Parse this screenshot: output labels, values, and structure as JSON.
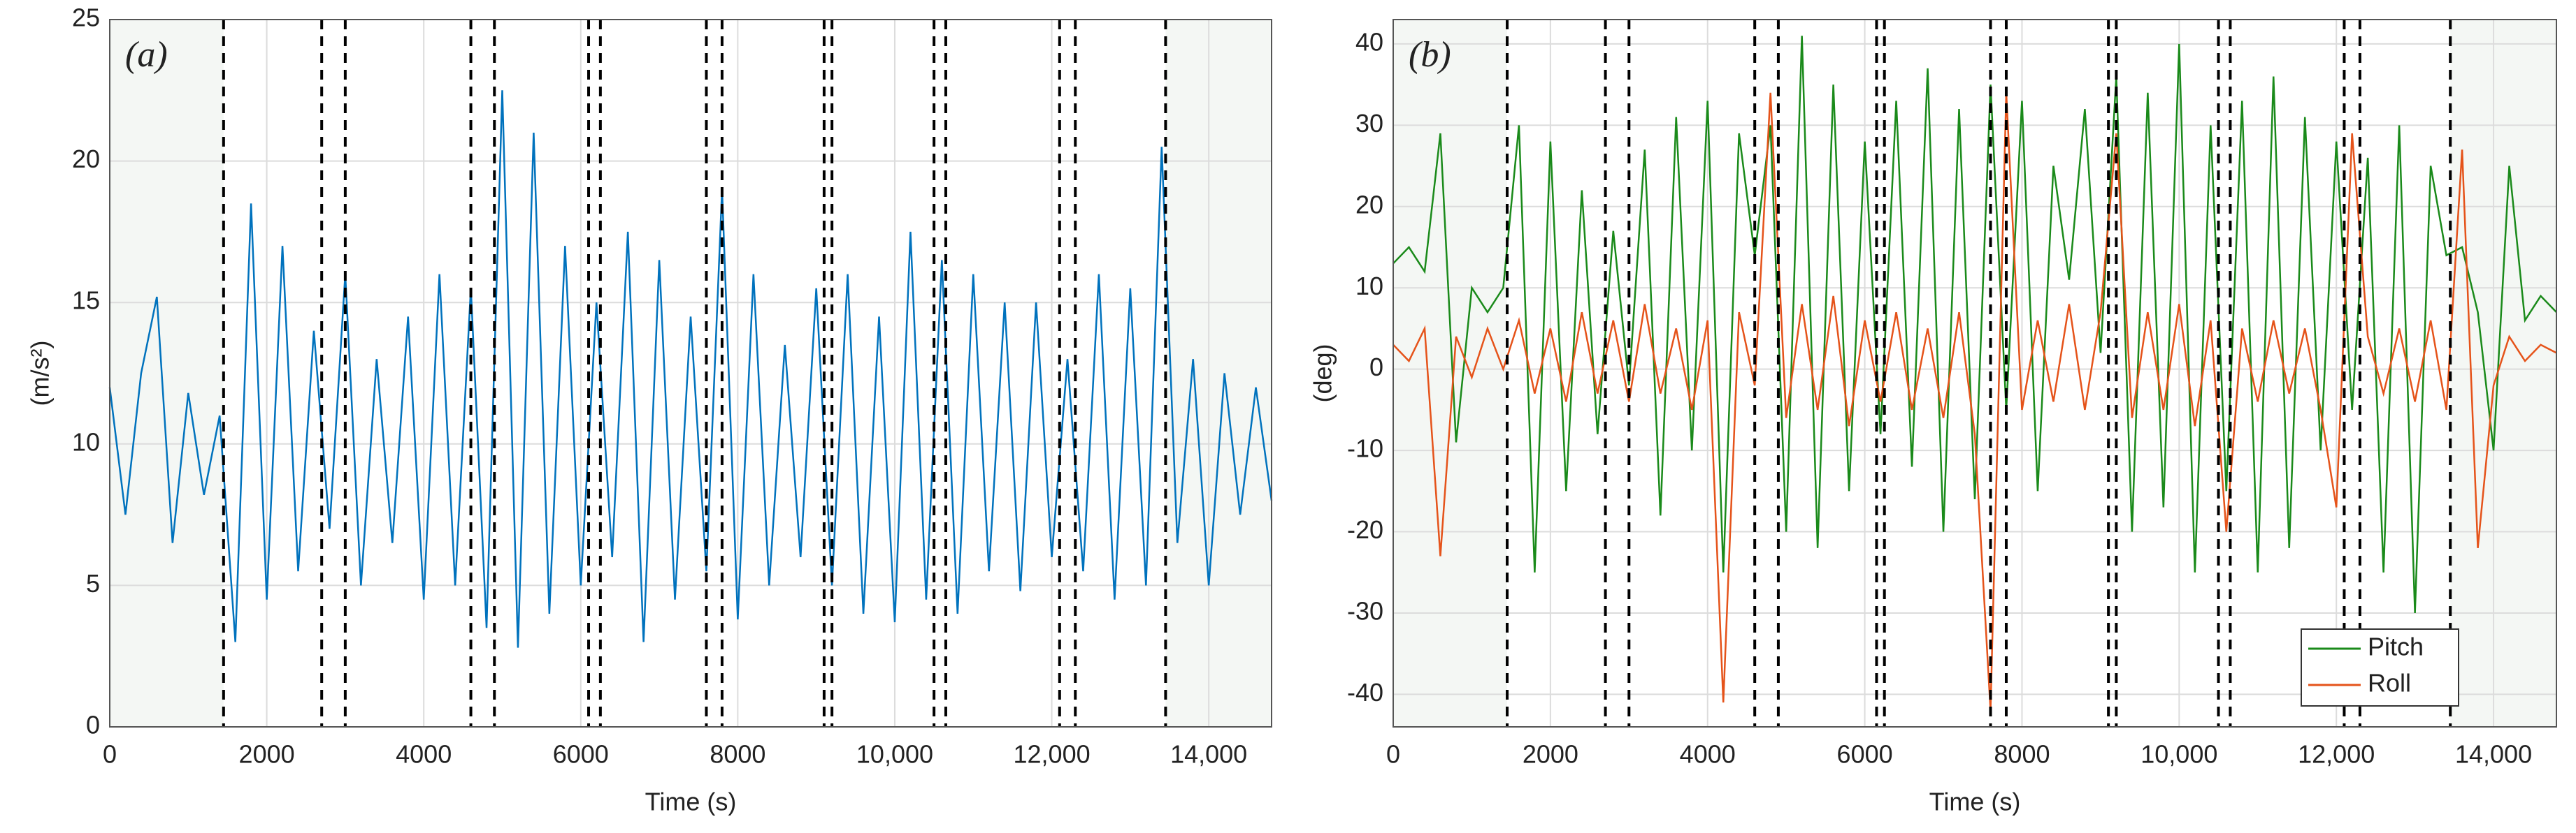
{
  "chart_data": [
    {
      "type": "line",
      "panel_label": "(a)",
      "x_label": "Time (s)",
      "y_label": "(m/s²)",
      "color": "#0072bd",
      "grid": true,
      "xlim": [
        0,
        14800
      ],
      "ylim": [
        0,
        25
      ],
      "xticks": [
        0,
        2000,
        4000,
        6000,
        8000,
        {
          "value": 10000,
          "label": "10,000"
        },
        {
          "value": 12000,
          "label": "12,000"
        },
        {
          "value": 14000,
          "label": "14,000"
        }
      ],
      "yticks": [
        0,
        5,
        10,
        15,
        20,
        25
      ],
      "shaded_regions": [
        [
          0,
          1450
        ],
        [
          13450,
          14800
        ]
      ],
      "vlines": [
        1450,
        2700,
        3000,
        4600,
        4900,
        6100,
        6250,
        7600,
        7800,
        9100,
        9200,
        10500,
        10650,
        12100,
        12300,
        13450
      ],
      "x": [
        0,
        200,
        400,
        600,
        800,
        1000,
        1200,
        1400,
        1600,
        1800,
        2000,
        2200,
        2400,
        2600,
        2800,
        3000,
        3200,
        3400,
        3600,
        3800,
        4000,
        4200,
        4400,
        4600,
        4800,
        5000,
        5200,
        5400,
        5600,
        5800,
        6000,
        6200,
        6400,
        6600,
        6800,
        7000,
        7200,
        7400,
        7600,
        7800,
        8000,
        8200,
        8400,
        8600,
        8800,
        9000,
        9200,
        9400,
        9600,
        9800,
        10000,
        10200,
        10400,
        10600,
        10800,
        11000,
        11200,
        11400,
        11600,
        11800,
        12000,
        12200,
        12400,
        12600,
        12800,
        13000,
        13200,
        13400,
        13600,
        13800,
        14000,
        14200,
        14400,
        14600,
        14800
      ],
      "values": [
        12,
        7.5,
        12.5,
        15.2,
        6.5,
        11.8,
        8.2,
        11,
        3,
        18.5,
        4.5,
        17,
        5.5,
        14,
        7,
        16,
        5,
        13,
        6.5,
        14.5,
        4.5,
        16,
        5,
        15.5,
        3.5,
        22.5,
        2.8,
        21,
        4,
        17,
        5,
        15,
        6,
        17.5,
        3,
        16.5,
        4.5,
        14.5,
        5.5,
        19,
        3.8,
        16,
        5,
        13.5,
        6,
        15.5,
        5,
        16,
        4,
        14.5,
        3.7,
        17.5,
        4.5,
        16.5,
        4,
        16,
        5.5,
        15,
        4.8,
        15,
        6,
        13,
        5.5,
        16,
        4.5,
        15.5,
        5,
        20.5,
        6.5,
        13,
        5,
        12.5,
        7.5,
        12,
        8
      ]
    },
    {
      "type": "line",
      "panel_label": "(b)",
      "x_label": "Time (s)",
      "y_label": "(deg)",
      "grid": true,
      "legend": "lower right",
      "xlim": [
        0,
        14800
      ],
      "ylim": [
        -44,
        43
      ],
      "xticks": [
        0,
        2000,
        4000,
        6000,
        8000,
        {
          "value": 10000,
          "label": "10,000"
        },
        {
          "value": 12000,
          "label": "12,000"
        },
        {
          "value": 14000,
          "label": "14,000"
        }
      ],
      "yticks": [
        -40,
        -30,
        -20,
        -10,
        0,
        10,
        20,
        30,
        40
      ],
      "shaded_regions": [
        [
          0,
          1450
        ],
        [
          13450,
          14800
        ]
      ],
      "vlines": [
        1450,
        2700,
        3000,
        4600,
        4900,
        6150,
        6250,
        7600,
        7800,
        9100,
        9200,
        10500,
        10650,
        12100,
        12300,
        13450
      ],
      "x": [
        0,
        200,
        400,
        600,
        800,
        1000,
        1200,
        1400,
        1600,
        1800,
        2000,
        2200,
        2400,
        2600,
        2800,
        3000,
        3200,
        3400,
        3600,
        3800,
        4000,
        4200,
        4400,
        4600,
        4800,
        5000,
        5200,
        5400,
        5600,
        5800,
        6000,
        6200,
        6400,
        6600,
        6800,
        7000,
        7200,
        7400,
        7600,
        7800,
        8000,
        8200,
        8400,
        8600,
        8800,
        9000,
        9200,
        9400,
        9600,
        9800,
        10000,
        10200,
        10400,
        10600,
        10800,
        11000,
        11200,
        11400,
        11600,
        11800,
        12000,
        12200,
        12400,
        12600,
        12800,
        13000,
        13200,
        13400,
        13600,
        13800,
        14000,
        14200,
        14400,
        14600,
        14800
      ],
      "series": [
        {
          "name": "Pitch",
          "color": "#1a8a1a",
          "values": [
            13,
            15,
            12,
            29,
            -9,
            10,
            7,
            10,
            30,
            -25,
            28,
            -15,
            22,
            -8,
            17,
            -2,
            27,
            -18,
            31,
            -10,
            33,
            -25,
            29,
            14,
            30,
            -20,
            41,
            -22,
            35,
            -15,
            28,
            -8,
            33,
            -12,
            37,
            -20,
            32,
            -16,
            35,
            -5,
            33,
            -15,
            25,
            11,
            32,
            2,
            36,
            -20,
            34,
            -17,
            40,
            -25,
            30,
            -15,
            33,
            -25,
            36,
            -22,
            31,
            -10,
            28,
            -5,
            26,
            -25,
            30,
            -30,
            25,
            14,
            15,
            7,
            -10,
            25,
            6,
            9,
            7
          ]
        },
        {
          "name": "Roll",
          "color": "#e5531a",
          "values": [
            3,
            1,
            5,
            -23,
            4,
            -1,
            5,
            0,
            6,
            -3,
            5,
            -4,
            7,
            -3,
            6,
            -4,
            8,
            -3,
            5,
            -5,
            6,
            -41,
            7,
            -2,
            34,
            -6,
            8,
            -5,
            9,
            -7,
            6,
            -4,
            7,
            -5,
            5,
            -6,
            7,
            -8,
            -42,
            34,
            -5,
            6,
            -4,
            8,
            -5,
            7,
            29,
            -6,
            7,
            -5,
            8,
            -7,
            6,
            -20,
            5,
            -4,
            6,
            -3,
            5,
            -5,
            -17,
            29,
            4,
            -3,
            5,
            -4,
            6,
            -5,
            27,
            -22,
            -2,
            4,
            1,
            3,
            2
          ]
        }
      ]
    }
  ]
}
